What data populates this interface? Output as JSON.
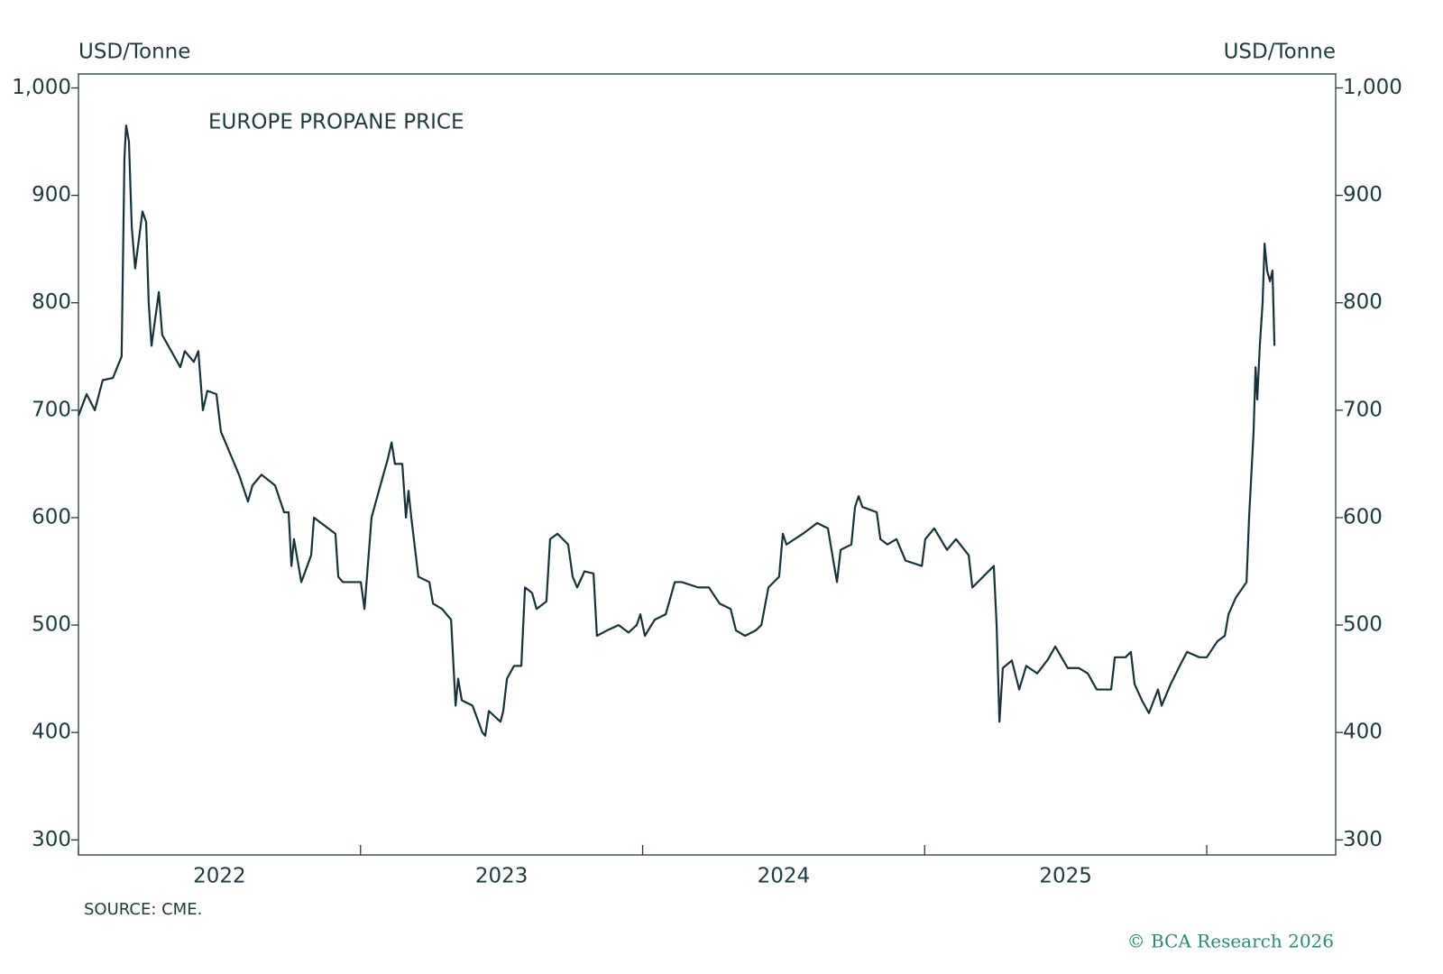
{
  "chart_data": {
    "type": "line",
    "title": "EUROPE PROPANE PRICE",
    "y_label": "USD/Tonne",
    "y2_label": "USD/Tonne",
    "source": "SOURCE: CME.",
    "credit": "© BCA Research 2026",
    "x": [
      2022.0,
      2022.029,
      2022.058,
      2022.086,
      2022.122,
      2022.153,
      2022.163,
      2022.169,
      2022.179,
      2022.189,
      2022.201,
      2022.227,
      2022.24,
      2022.249,
      2022.259,
      2022.285,
      2022.297,
      2022.329,
      2022.361,
      2022.377,
      2022.409,
      2022.425,
      2022.441,
      2022.457,
      2022.489,
      2022.505,
      2022.537,
      2022.569,
      2022.601,
      2022.617,
      2022.649,
      2022.697,
      2022.729,
      2022.745,
      2022.755,
      2022.764,
      2022.79,
      2022.825,
      2022.835,
      2022.86,
      2022.911,
      2022.921,
      2022.937,
      2022.969,
      2023.001,
      2023.014,
      2023.039,
      2023.065,
      2023.097,
      2023.11,
      2023.122,
      2023.148,
      2023.161,
      2023.17,
      2023.18,
      2023.205,
      2023.244,
      2023.257,
      2023.289,
      2023.321,
      2023.337,
      2023.346,
      2023.359,
      2023.397,
      2023.432,
      2023.442,
      2023.455,
      2023.496,
      2023.506,
      2023.519,
      2023.544,
      2023.57,
      2023.583,
      2023.608,
      2023.624,
      2023.659,
      2023.672,
      2023.698,
      2023.736,
      2023.752,
      2023.768,
      2023.794,
      2023.826,
      2023.838,
      2023.874,
      2023.915,
      2023.95,
      2023.979,
      2023.992,
      2024.008,
      2024.043,
      2024.082,
      2024.114,
      2024.139,
      2024.197,
      2024.235,
      2024.273,
      2024.312,
      2024.331,
      2024.363,
      2024.401,
      2024.421,
      2024.446,
      2024.484,
      2024.497,
      2024.51,
      2024.568,
      2024.619,
      2024.657,
      2024.676,
      2024.689,
      2024.702,
      2024.74,
      2024.753,
      2024.766,
      2024.779,
      2024.83,
      2024.843,
      2024.868,
      2024.9,
      2024.932,
      2024.99,
      2025.002,
      2025.034,
      2025.079,
      2025.111,
      2025.156,
      2025.169,
      2025.207,
      2025.245,
      2025.255,
      2025.265,
      2025.277,
      2025.309,
      2025.335,
      2025.36,
      2025.399,
      2025.437,
      2025.463,
      2025.507,
      2025.546,
      2025.578,
      2025.61,
      2025.661,
      2025.674,
      2025.712,
      2025.731,
      2025.744,
      2025.77,
      2025.795,
      2025.827,
      2025.84,
      2025.872,
      2025.91,
      2025.93,
      2025.974,
      2026.0,
      2026.038,
      2026.064,
      2026.077,
      2026.102,
      2026.141,
      2026.15,
      2026.16,
      2026.166,
      2026.173,
      2026.179,
      2026.188,
      2026.198,
      2026.205,
      2026.214,
      2026.224,
      2026.233,
      2026.24
    ],
    "series": [
      {
        "name": "Europe Propane Price",
        "color": "#17323a",
        "values": [
          695,
          715,
          700,
          728,
          730,
          750,
          935,
          965,
          950,
          870,
          832,
          885,
          875,
          800,
          760,
          810,
          770,
          755,
          740,
          755,
          745,
          755,
          700,
          718,
          715,
          680,
          660,
          640,
          615,
          630,
          640,
          630,
          605,
          605,
          555,
          580,
          540,
          565,
          600,
          595,
          585,
          545,
          540,
          540,
          540,
          515,
          600,
          625,
          655,
          670,
          650,
          650,
          600,
          625,
          600,
          545,
          540,
          520,
          515,
          505,
          425,
          450,
          430,
          425,
          400,
          397,
          420,
          410,
          420,
          450,
          462,
          462,
          535,
          530,
          515,
          522,
          580,
          585,
          575,
          545,
          535,
          550,
          548,
          490,
          495,
          500,
          493,
          500,
          510,
          490,
          505,
          510,
          540,
          540,
          535,
          535,
          520,
          515,
          495,
          490,
          495,
          500,
          535,
          545,
          585,
          575,
          585,
          595,
          590,
          560,
          540,
          570,
          575,
          610,
          620,
          610,
          605,
          580,
          575,
          580,
          560,
          555,
          580,
          590,
          570,
          580,
          565,
          535,
          545,
          555,
          500,
          410,
          460,
          467,
          440,
          462,
          455,
          468,
          480,
          460,
          460,
          455,
          440,
          440,
          470,
          470,
          475,
          445,
          430,
          418,
          440,
          425,
          445,
          465,
          475,
          470,
          470,
          485,
          490,
          510,
          525,
          540,
          600,
          650,
          680,
          740,
          710,
          760,
          800,
          855,
          830,
          820,
          830,
          760
        ]
      }
    ],
    "xlim": [
      2022,
      2026.457
    ],
    "xticks": [
      {
        "value": 2022,
        "label": "2022"
      },
      {
        "value": 2023,
        "label": "2023"
      },
      {
        "value": 2024,
        "label": "2024"
      },
      {
        "value": 2025,
        "label": "2025"
      },
      {
        "value": 2026,
        "label": null
      }
    ],
    "ylim": [
      286,
      1013
    ],
    "yticks": [
      300,
      400,
      500,
      600,
      700,
      800,
      900,
      {
        "value": 1000,
        "label": "1,000"
      }
    ],
    "y2lim": [
      286,
      1013
    ],
    "y2ticks": [
      300,
      400,
      500,
      600,
      700,
      800,
      900,
      {
        "value": 1000,
        "label": "1,000"
      }
    ],
    "grid": false
  }
}
